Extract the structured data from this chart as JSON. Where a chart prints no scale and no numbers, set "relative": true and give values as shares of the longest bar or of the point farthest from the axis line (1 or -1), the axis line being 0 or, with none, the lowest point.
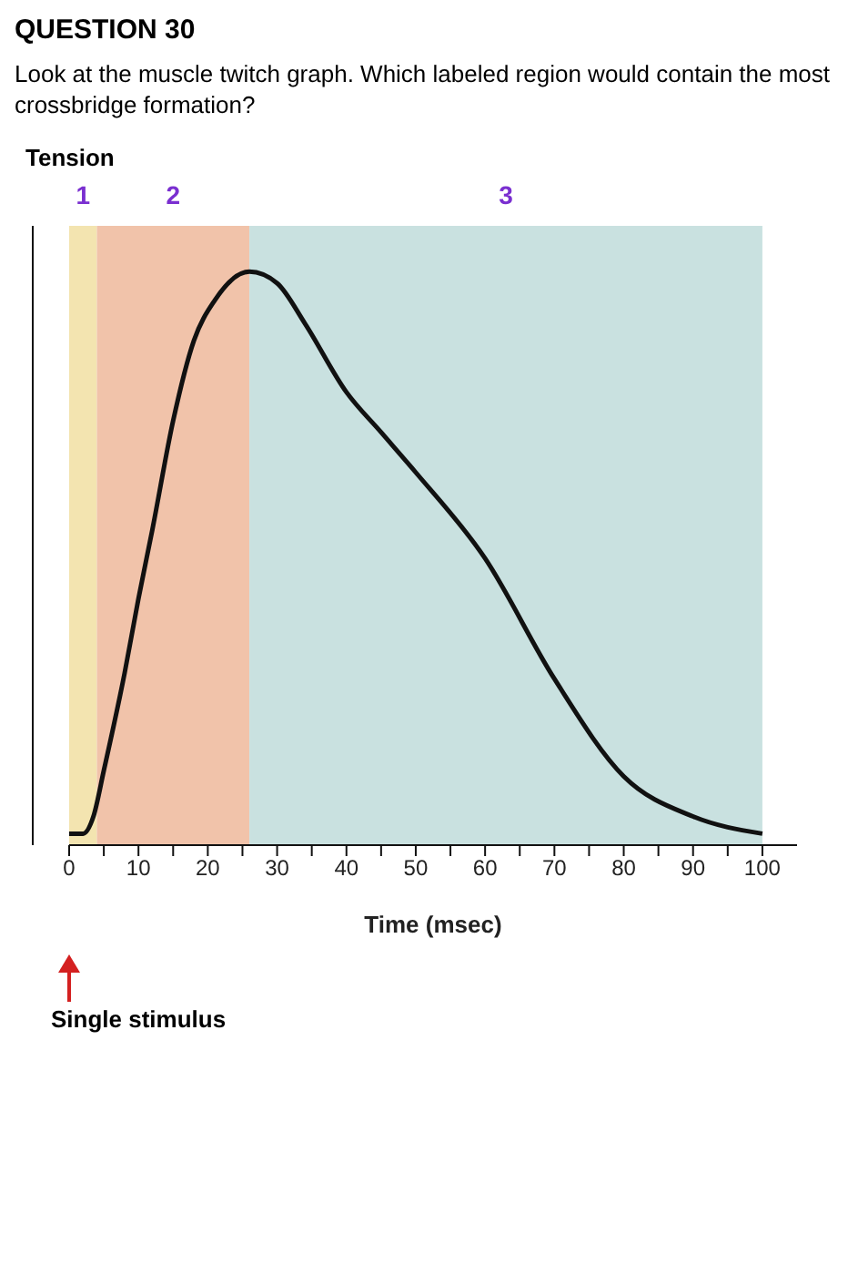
{
  "chart_data": {
    "type": "line",
    "title": "QUESTION 30",
    "subtitle": "Look at the muscle twitch graph. Which labeled region would contain the most crossbridge formation?",
    "xlabel": "Time (msec)",
    "ylabel": "Tension",
    "relative": true,
    "x": [
      0,
      2,
      3.5,
      5,
      8,
      10,
      12,
      15,
      18,
      21,
      26,
      30,
      34,
      40,
      45,
      50,
      60,
      70,
      80,
      90,
      100
    ],
    "series": [
      {
        "color": "#111111",
        "values": [
          0.02,
          0.02,
          0.05,
          0.13,
          0.3,
          0.43,
          0.55,
          0.74,
          0.88,
          0.95,
          1,
          0.98,
          0.91,
          0.79,
          0.72,
          0.65,
          0.5,
          0.29,
          0.12,
          0.05,
          0.02
        ]
      }
    ],
    "xlim": [
      0,
      105
    ],
    "xticks": [
      0,
      {
        "value": 5,
        "label": null
      },
      10,
      {
        "value": 15,
        "label": null
      },
      20,
      {
        "value": 25,
        "label": null
      },
      30,
      {
        "value": 35,
        "label": null
      },
      40,
      {
        "value": 45,
        "label": null
      },
      50,
      {
        "value": 55,
        "label": null
      },
      60,
      {
        "value": 65,
        "label": null
      },
      70,
      {
        "value": 75,
        "label": null
      },
      80,
      {
        "value": 85,
        "label": null
      },
      90,
      {
        "value": 95,
        "label": null
      },
      100
    ],
    "bands": [
      {
        "axis": "x",
        "from": 0,
        "to": 4,
        "label": "1",
        "color": "#f3e4b0"
      },
      {
        "axis": "x",
        "from": 4,
        "to": 26,
        "label": "2",
        "color": "#f1c3aa"
      },
      {
        "axis": "x",
        "from": 26,
        "to": 100,
        "label": "3",
        "color": "#c9e1e0"
      }
    ],
    "annotations": [
      "Single stimulus"
    ],
    "marker": "none",
    "line_style": "solid"
  }
}
